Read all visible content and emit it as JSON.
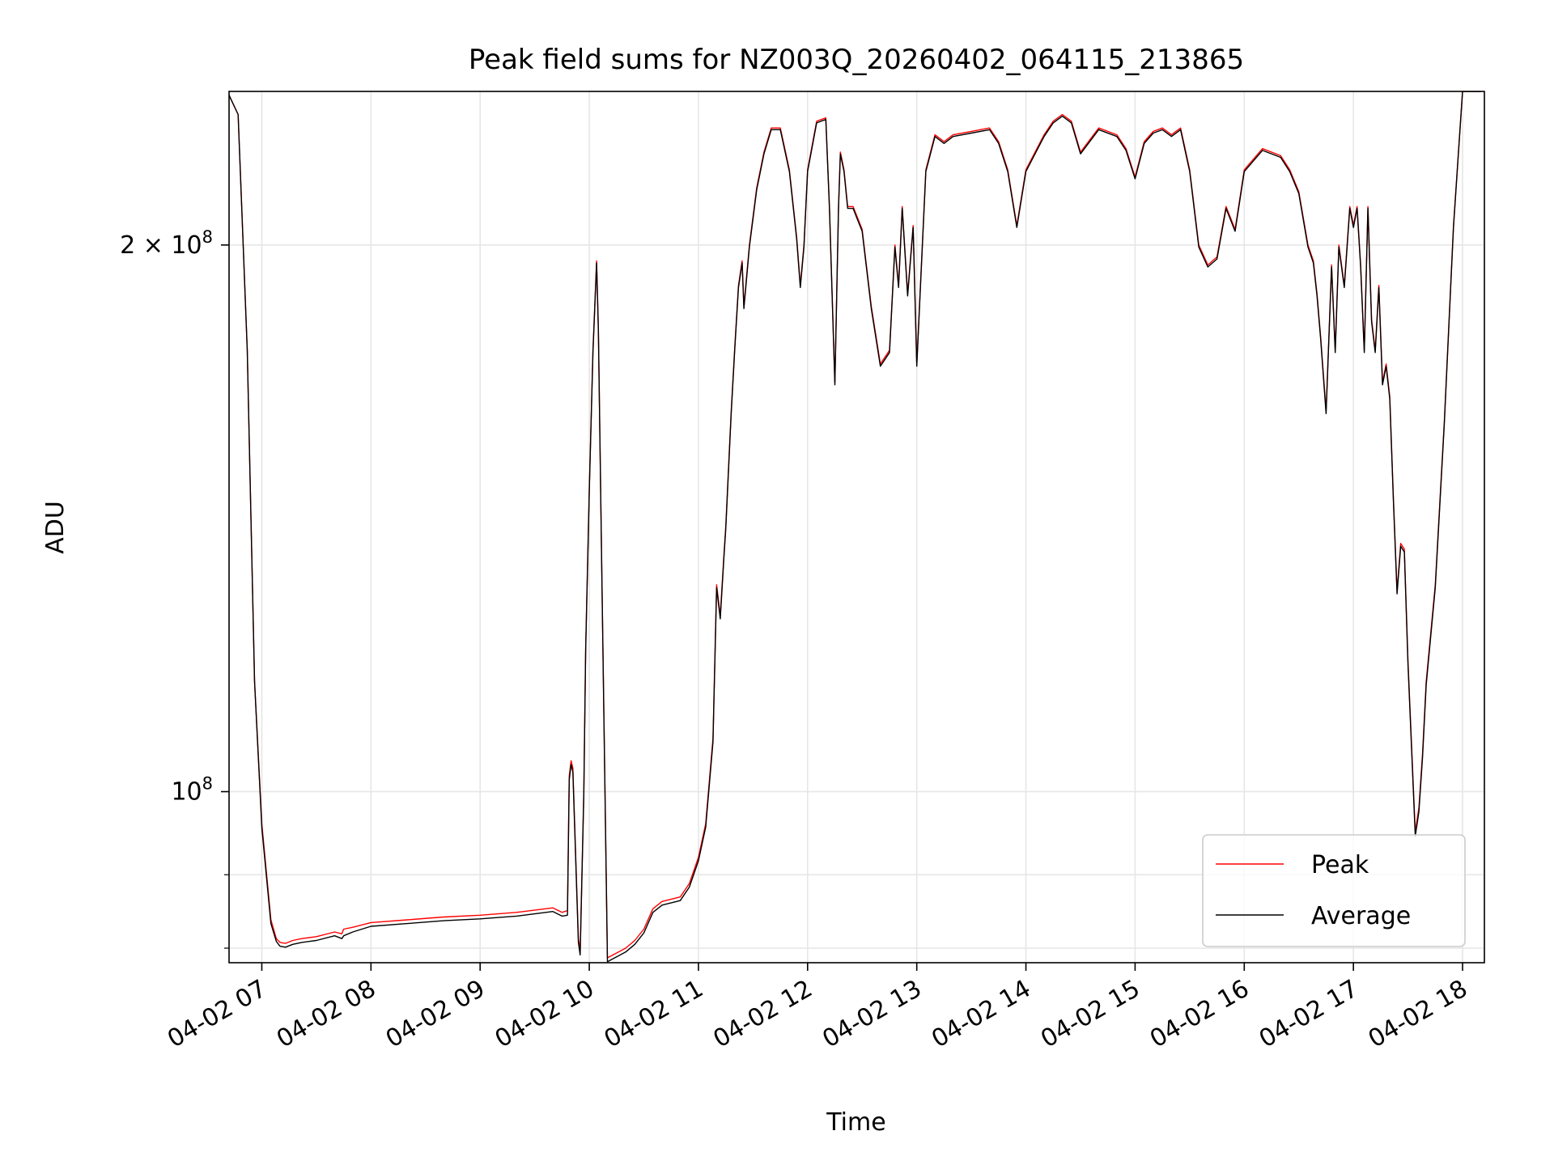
{
  "chart_data": {
    "type": "line",
    "title": "Peak field sums for NZ003Q_20260402_064115_213865",
    "xlabel": "Time",
    "ylabel": "ADU",
    "yscale": "log",
    "ylim": [
      80500000,
      243000000
    ],
    "xlim": [
      "04-02 06:42",
      "04-02 18:12"
    ],
    "x_tick_labels": [
      "04-02 07",
      "04-02 08",
      "04-02 09",
      "04-02 10",
      "04-02 11",
      "04-02 12",
      "04-02 13",
      "04-02 14",
      "04-02 15",
      "04-02 16",
      "04-02 17",
      "04-02 18"
    ],
    "y_major_ticks": [
      {
        "value": 100000000,
        "base": "10",
        "exp": "8",
        "coef": ""
      },
      {
        "value": 200000000,
        "base": "10",
        "exp": "8",
        "coef": "2 × "
      }
    ],
    "y_minor_ticks": [
      82000000,
      90000000
    ],
    "grid": true,
    "legend_position": "lower right",
    "series": [
      {
        "name": "Peak",
        "color": "#ff0000",
        "x": [
          "06:41",
          "06:47",
          "06:52",
          "06:56",
          "07:00",
          "07:05",
          "07:08",
          "07:10",
          "07:13",
          "07:17",
          "07:22",
          "07:30",
          "07:40",
          "07:44",
          "07:45",
          "07:50",
          "08:00",
          "08:20",
          "08:40",
          "09:00",
          "09:20",
          "09:40",
          "09:45",
          "09:48",
          "09:49",
          "09:50",
          "09:51",
          "09:54",
          "09:55",
          "09:57",
          "09:58",
          "10:00",
          "10:02",
          "10:04",
          "10:05",
          "10:07",
          "10:10",
          "10:15",
          "10:20",
          "10:25",
          "10:30",
          "10:35",
          "10:40",
          "10:50",
          "10:55",
          "11:00",
          "11:04",
          "11:08",
          "11:10",
          "11:12",
          "11:14",
          "11:15",
          "11:18",
          "11:20",
          "11:22",
          "11:24",
          "11:25",
          "11:28",
          "11:32",
          "11:36",
          "11:40",
          "11:45",
          "11:50",
          "11:54",
          "11:56",
          "11:58",
          "12:00",
          "12:05",
          "12:10",
          "12:12",
          "12:15",
          "12:17",
          "12:18",
          "12:20",
          "12:22",
          "12:25",
          "12:30",
          "12:35",
          "12:40",
          "12:45",
          "12:48",
          "12:50",
          "12:52",
          "12:55",
          "12:58",
          "13:00",
          "13:02",
          "13:05",
          "13:08",
          "13:10",
          "13:15",
          "13:20",
          "13:30",
          "13:40",
          "13:45",
          "13:50",
          "13:55",
          "14:00",
          "14:10",
          "14:15",
          "14:20",
          "14:25",
          "14:30",
          "14:40",
          "14:50",
          "14:55",
          "15:00",
          "15:05",
          "15:10",
          "15:15",
          "15:20",
          "15:25",
          "15:30",
          "15:35",
          "15:40",
          "15:45",
          "15:50",
          "15:55",
          "16:00",
          "16:10",
          "16:20",
          "16:25",
          "16:30",
          "16:35",
          "16:38",
          "16:40",
          "16:42",
          "16:45",
          "16:48",
          "16:50",
          "16:52",
          "16:55",
          "16:58",
          "17:00",
          "17:02",
          "17:04",
          "17:06",
          "17:08",
          "17:10",
          "17:12",
          "17:14",
          "17:16",
          "17:18",
          "17:20",
          "17:22",
          "17:24",
          "17:26",
          "17:28",
          "17:30",
          "17:34",
          "17:36",
          "17:38",
          "17:40",
          "17:45",
          "17:50",
          "17:55",
          "18:00",
          "18:10"
        ],
        "y": [
          243000000,
          236000000,
          175000000,
          115000000,
          96000000,
          85000000,
          83000000,
          82600000,
          82500000,
          82800000,
          83000000,
          83200000,
          83700000,
          83500000,
          84000000,
          84200000,
          84700000,
          85000000,
          85300000,
          85500000,
          85800000,
          86300000,
          85800000,
          86000000,
          102000000,
          104000000,
          103000000,
          83000000,
          81700000,
          100000000,
          120000000,
          147000000,
          175000000,
          196000000,
          180000000,
          130000000,
          81000000,
          81500000,
          82000000,
          82800000,
          84000000,
          86200000,
          87000000,
          87500000,
          89000000,
          92000000,
          96000000,
          107000000,
          130000000,
          125000000,
          135000000,
          140000000,
          162000000,
          176000000,
          190000000,
          196000000,
          185000000,
          200000000,
          215000000,
          225000000,
          232000000,
          232000000,
          220000000,
          202000000,
          190000000,
          200000000,
          220000000,
          234000000,
          235000000,
          210000000,
          168000000,
          210000000,
          225000000,
          220000000,
          210000000,
          210000000,
          204000000,
          185000000,
          172000000,
          175000000,
          200000000,
          190000000,
          210000000,
          188000000,
          205000000,
          172000000,
          190000000,
          220000000,
          226000000,
          230000000,
          228000000,
          230000000,
          231000000,
          232000000,
          228000000,
          220000000,
          205000000,
          220000000,
          230000000,
          234000000,
          236000000,
          234000000,
          225000000,
          232000000,
          230000000,
          226000000,
          218000000,
          228000000,
          231000000,
          232000000,
          230000000,
          232000000,
          220000000,
          200000000,
          195000000,
          197000000,
          210000000,
          204000000,
          220000000,
          226000000,
          224000000,
          220000000,
          214000000,
          200000000,
          196000000,
          188000000,
          178000000,
          162000000,
          195000000,
          175000000,
          200000000,
          190000000,
          210000000,
          205000000,
          210000000,
          195000000,
          175000000,
          210000000,
          182000000,
          175000000,
          190000000,
          168000000,
          172000000,
          165000000,
          145000000,
          129000000,
          137000000,
          136000000,
          118000000,
          95000000,
          98000000,
          105000000,
          115000000,
          130000000,
          160000000,
          205000000,
          243000000,
          243000000
        ]
      },
      {
        "name": "Average",
        "color": "#000000",
        "x": [
          "06:41",
          "06:47",
          "06:52",
          "06:56",
          "07:00",
          "07:05",
          "07:08",
          "07:10",
          "07:13",
          "07:17",
          "07:22",
          "07:30",
          "07:40",
          "07:44",
          "07:45",
          "07:50",
          "08:00",
          "08:20",
          "08:40",
          "09:00",
          "09:20",
          "09:40",
          "09:45",
          "09:48",
          "09:49",
          "09:50",
          "09:51",
          "09:54",
          "09:55",
          "09:57",
          "09:58",
          "10:00",
          "10:02",
          "10:04",
          "10:05",
          "10:07",
          "10:10",
          "10:15",
          "10:20",
          "10:25",
          "10:30",
          "10:35",
          "10:40",
          "10:50",
          "10:55",
          "11:00",
          "11:04",
          "11:08",
          "11:10",
          "11:12",
          "11:14",
          "11:15",
          "11:18",
          "11:20",
          "11:22",
          "11:24",
          "11:25",
          "11:28",
          "11:32",
          "11:36",
          "11:40",
          "11:45",
          "11:50",
          "11:54",
          "11:56",
          "11:58",
          "12:00",
          "12:05",
          "12:10",
          "12:12",
          "12:15",
          "12:17",
          "12:18",
          "12:20",
          "12:22",
          "12:25",
          "12:30",
          "12:35",
          "12:40",
          "12:45",
          "12:48",
          "12:50",
          "12:52",
          "12:55",
          "12:58",
          "13:00",
          "13:02",
          "13:05",
          "13:08",
          "13:10",
          "13:15",
          "13:20",
          "13:30",
          "13:40",
          "13:45",
          "13:50",
          "13:55",
          "14:00",
          "14:10",
          "14:15",
          "14:20",
          "14:25",
          "14:30",
          "14:40",
          "14:50",
          "14:55",
          "15:00",
          "15:05",
          "15:10",
          "15:15",
          "15:20",
          "15:25",
          "15:30",
          "15:35",
          "15:40",
          "15:45",
          "15:50",
          "15:55",
          "16:00",
          "16:10",
          "16:20",
          "16:25",
          "16:30",
          "16:35",
          "16:38",
          "16:40",
          "16:42",
          "16:45",
          "16:48",
          "16:50",
          "16:52",
          "16:55",
          "16:58",
          "17:00",
          "17:02",
          "17:04",
          "17:06",
          "17:08",
          "17:10",
          "17:12",
          "17:14",
          "17:16",
          "17:18",
          "17:20",
          "17:22",
          "17:24",
          "17:26",
          "17:28",
          "17:30",
          "17:34",
          "17:36",
          "17:38",
          "17:40",
          "17:45",
          "17:50",
          "17:55",
          "18:00",
          "18:10"
        ],
        "y": [
          243000000,
          236000000,
          175000000,
          115000000,
          95500000,
          84600000,
          82700000,
          82200000,
          82100000,
          82400000,
          82600000,
          82800000,
          83300000,
          83000000,
          83300000,
          83700000,
          84300000,
          84600000,
          84900000,
          85100000,
          85400000,
          85900000,
          85400000,
          85500000,
          101500000,
          103500000,
          102500000,
          82600000,
          81300000,
          99500000,
          119500000,
          146500000,
          174500000,
          195500000,
          179500000,
          129500000,
          80600000,
          81100000,
          81600000,
          82400000,
          83600000,
          85800000,
          86600000,
          87100000,
          88600000,
          91600000,
          95600000,
          106500000,
          129500000,
          124500000,
          134500000,
          139500000,
          161500000,
          175500000,
          189500000,
          195500000,
          184500000,
          199500000,
          214500000,
          224500000,
          231500000,
          231500000,
          219500000,
          201500000,
          189500000,
          199500000,
          219500000,
          233500000,
          234500000,
          209500000,
          167500000,
          209500000,
          224500000,
          219500000,
          209500000,
          209500000,
          203500000,
          184500000,
          171500000,
          174500000,
          199500000,
          189500000,
          209500000,
          187500000,
          204500000,
          171500000,
          189500000,
          219500000,
          225500000,
          229500000,
          227500000,
          229500000,
          230500000,
          231500000,
          227500000,
          219500000,
          204500000,
          219500000,
          229500000,
          233500000,
          235500000,
          233500000,
          224500000,
          231500000,
          229500000,
          225500000,
          217500000,
          227500000,
          230500000,
          231500000,
          229500000,
          231500000,
          219500000,
          199500000,
          194500000,
          196500000,
          209500000,
          203500000,
          219500000,
          225500000,
          223500000,
          219500000,
          213500000,
          199500000,
          195500000,
          187500000,
          177500000,
          161500000,
          194500000,
          174500000,
          199500000,
          189500000,
          209500000,
          204500000,
          209500000,
          194500000,
          174500000,
          209500000,
          181500000,
          174500000,
          189500000,
          167500000,
          171500000,
          164500000,
          144500000,
          128500000,
          136500000,
          135500000,
          117500000,
          94500000,
          97500000,
          104500000,
          114500000,
          129500000,
          159500000,
          204500000,
          243000000,
          243000000
        ]
      }
    ]
  }
}
